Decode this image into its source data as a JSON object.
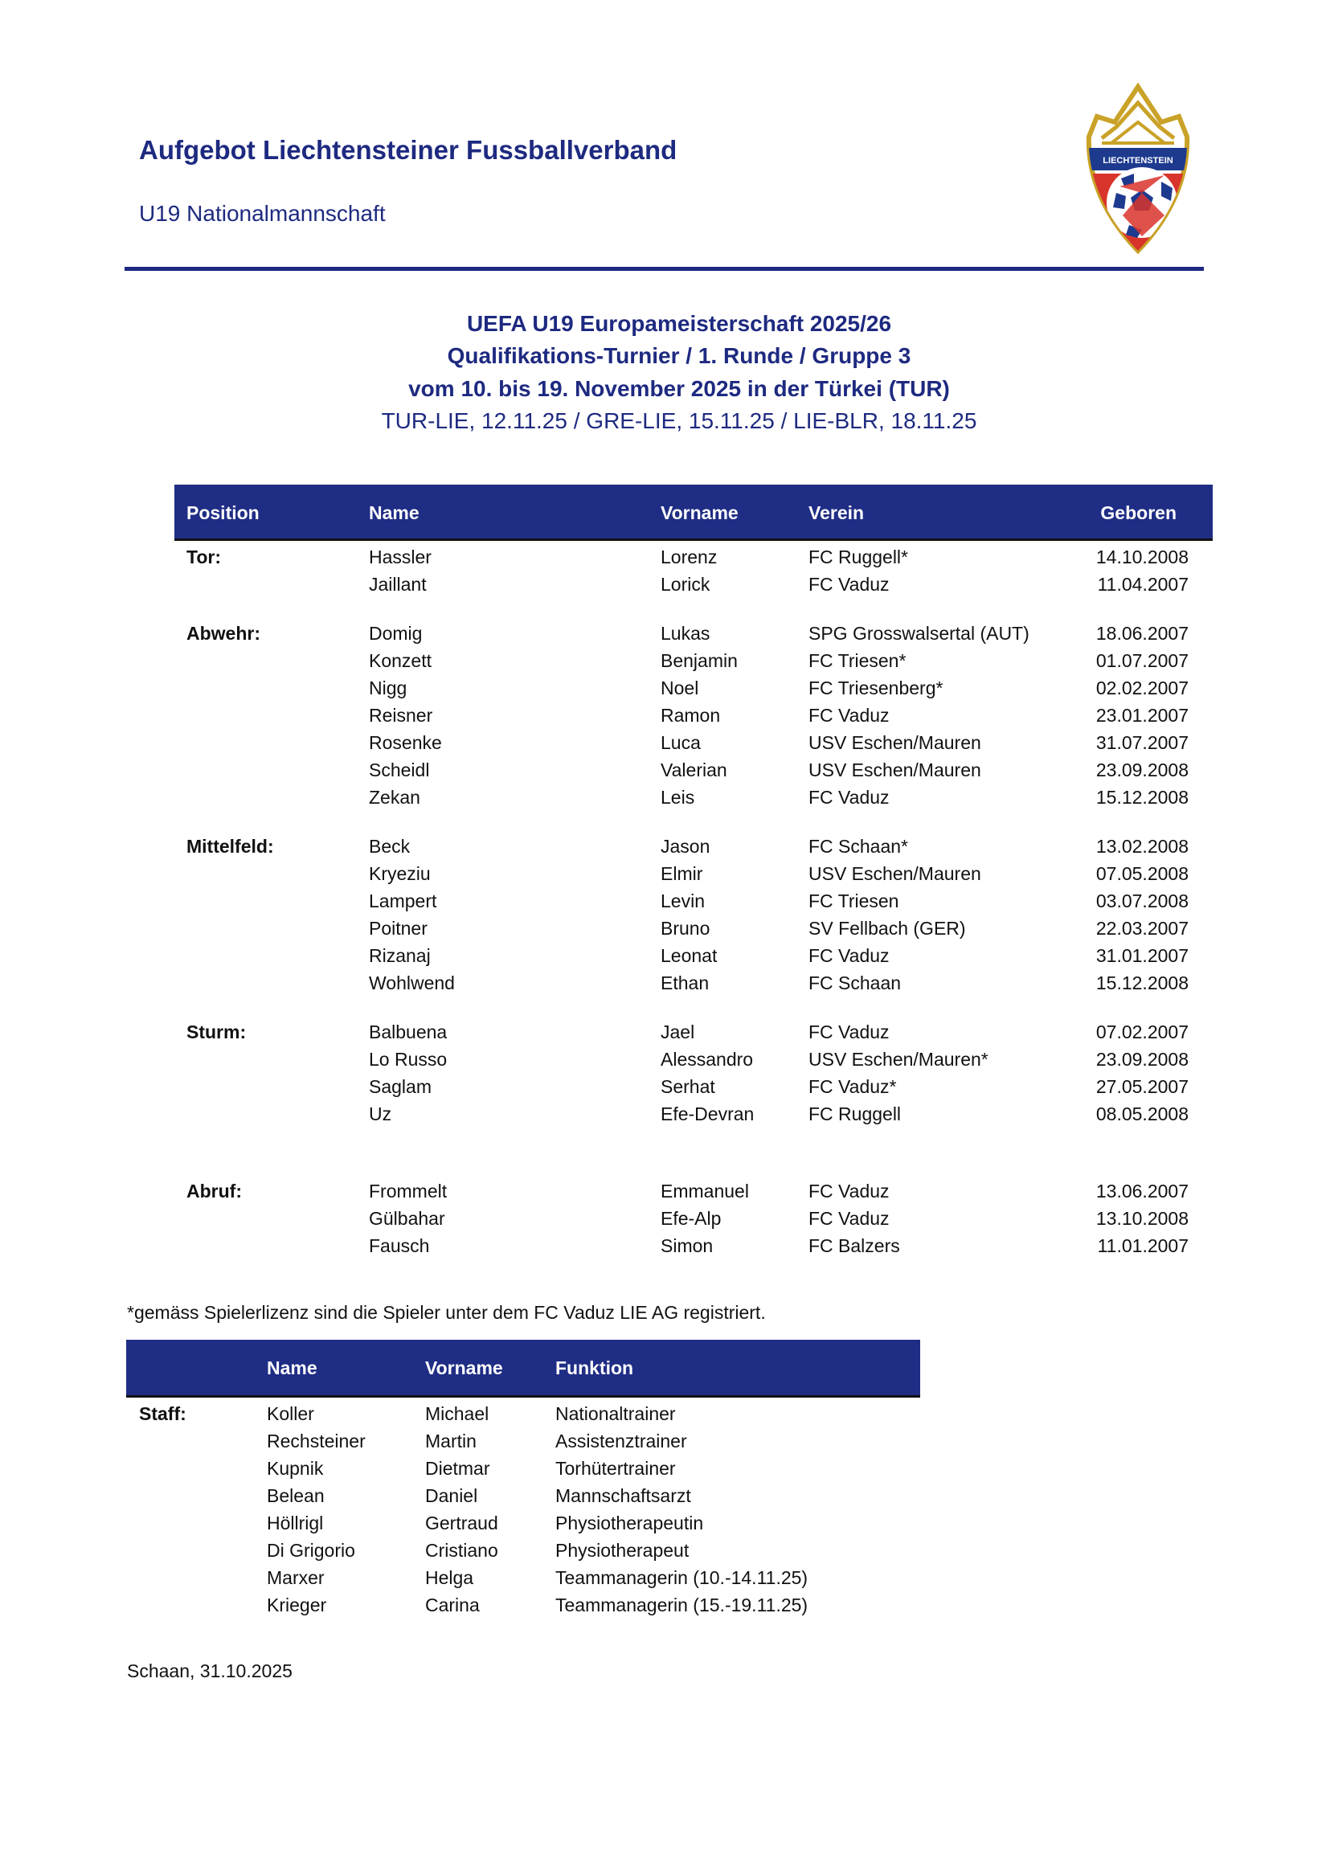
{
  "header": {
    "title": "Aufgebot Liechtensteiner Fussballverband",
    "subtitle": "U19 Nationalmannschaft",
    "logo_text": "LIECHTENSTEIN"
  },
  "event": {
    "line1": "UEFA U19 Europameisterschaft 2025/26",
    "line2": "Qualifikations-Turnier / 1. Runde / Gruppe 3",
    "line3": "vom 10. bis 19. November 2025 in der Türkei (TUR)",
    "line4": "TUR-LIE, 12.11.25 / GRE-LIE, 15.11.25 / LIE-BLR, 18.11.25"
  },
  "players_table": {
    "columns": [
      "Position",
      "Name",
      "Vorname",
      "Verein",
      "Geboren"
    ],
    "groups": [
      {
        "position": "Tor:",
        "rows": [
          [
            "Hassler",
            "Lorenz",
            "FC Ruggell*",
            "14.10.2008"
          ],
          [
            "Jaillant",
            "Lorick",
            "FC Vaduz",
            "11.04.2007"
          ]
        ]
      },
      {
        "position": "Abwehr:",
        "rows": [
          [
            "Domig",
            "Lukas",
            "SPG Grosswalsertal (AUT)",
            "18.06.2007"
          ],
          [
            "Konzett",
            "Benjamin",
            "FC Triesen*",
            "01.07.2007"
          ],
          [
            "Nigg",
            "Noel",
            "FC Triesenberg*",
            "02.02.2007"
          ],
          [
            "Reisner",
            "Ramon",
            "FC Vaduz",
            "23.01.2007"
          ],
          [
            "Rosenke",
            "Luca",
            "USV Eschen/Mauren",
            "31.07.2007"
          ],
          [
            "Scheidl",
            "Valerian",
            "USV Eschen/Mauren",
            "23.09.2008"
          ],
          [
            "Zekan",
            "Leis",
            "FC Vaduz",
            "15.12.2008"
          ]
        ]
      },
      {
        "position": "Mittelfeld:",
        "rows": [
          [
            "Beck",
            "Jason",
            "FC Schaan*",
            "13.02.2008"
          ],
          [
            "Kryeziu",
            "Elmir",
            "USV Eschen/Mauren",
            "07.05.2008"
          ],
          [
            "Lampert",
            "Levin",
            "FC Triesen",
            "03.07.2008"
          ],
          [
            "Poitner",
            "Bruno",
            "SV Fellbach (GER)",
            "22.03.2007"
          ],
          [
            "Rizanaj",
            "Leonat",
            "FC Vaduz",
            "31.01.2007"
          ],
          [
            "Wohlwend",
            "Ethan",
            "FC Schaan",
            "15.12.2008"
          ]
        ]
      },
      {
        "position": "Sturm:",
        "rows": [
          [
            "Balbuena",
            "Jael",
            "FC Vaduz",
            "07.02.2007"
          ],
          [
            "Lo Russo",
            "Alessandro",
            "USV Eschen/Mauren*",
            "23.09.2008"
          ],
          [
            "Saglam",
            "Serhat",
            "FC Vaduz*",
            "27.05.2007"
          ],
          [
            "Uz",
            "Efe-Devran",
            "FC Ruggell",
            "08.05.2008"
          ]
        ]
      },
      {
        "position": "Abruf:",
        "rows": [
          [
            "Frommelt",
            "Emmanuel",
            "FC Vaduz",
            "13.06.2007"
          ],
          [
            "Gülbahar",
            "Efe-Alp",
            "FC Vaduz",
            "13.10.2008"
          ],
          [
            "Fausch",
            "Simon",
            "FC Balzers",
            "11.01.2007"
          ]
        ]
      }
    ]
  },
  "footnote": "*gemäss Spielerlizenz sind die Spieler unter dem FC Vaduz LIE AG registriert.",
  "staff_table": {
    "columns": [
      "Name",
      "Vorname",
      "Funktion"
    ],
    "label": "Staff:",
    "rows": [
      [
        "Koller",
        "Michael",
        "Nationaltrainer"
      ],
      [
        "Rechsteiner",
        "Martin",
        "Assistenztrainer"
      ],
      [
        "Kupnik",
        "Dietmar",
        "Torhütertrainer"
      ],
      [
        "Belean",
        "Daniel",
        "Mannschaftsarzt"
      ],
      [
        "Höllrigl",
        "Gertraud",
        "Physiotherapeutin"
      ],
      [
        "Di Grigorio",
        "Cristiano",
        "Physiotherapeut"
      ],
      [
        "Marxer",
        "Helga",
        "Teammanagerin (10.-14.11.25)"
      ],
      [
        "Krieger",
        "Carina",
        "Teammanagerin (15.-19.11.25)"
      ]
    ]
  },
  "place_date": "Schaan, 31.10.2025",
  "colors": {
    "brand_navy": "#1e2a80",
    "header_bg": "#1f2d85",
    "logo_gold": "#c9a227",
    "logo_red": "#d9342b",
    "logo_blue": "#1d3a8f"
  }
}
